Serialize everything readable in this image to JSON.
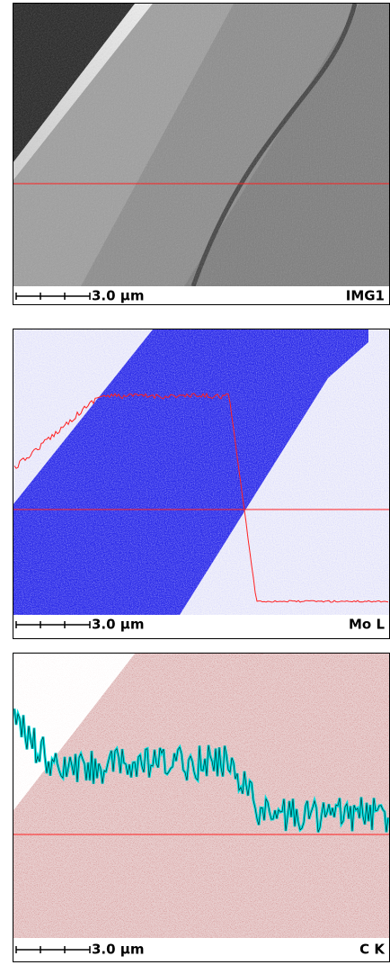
{
  "panels": [
    {
      "scale_label": "3.0 µm",
      "label": "IMG1"
    },
    {
      "scale_label": "3.0 µm",
      "label": "Mo L"
    },
    {
      "scale_label": "3.0 µm",
      "label": "C K"
    }
  ]
}
